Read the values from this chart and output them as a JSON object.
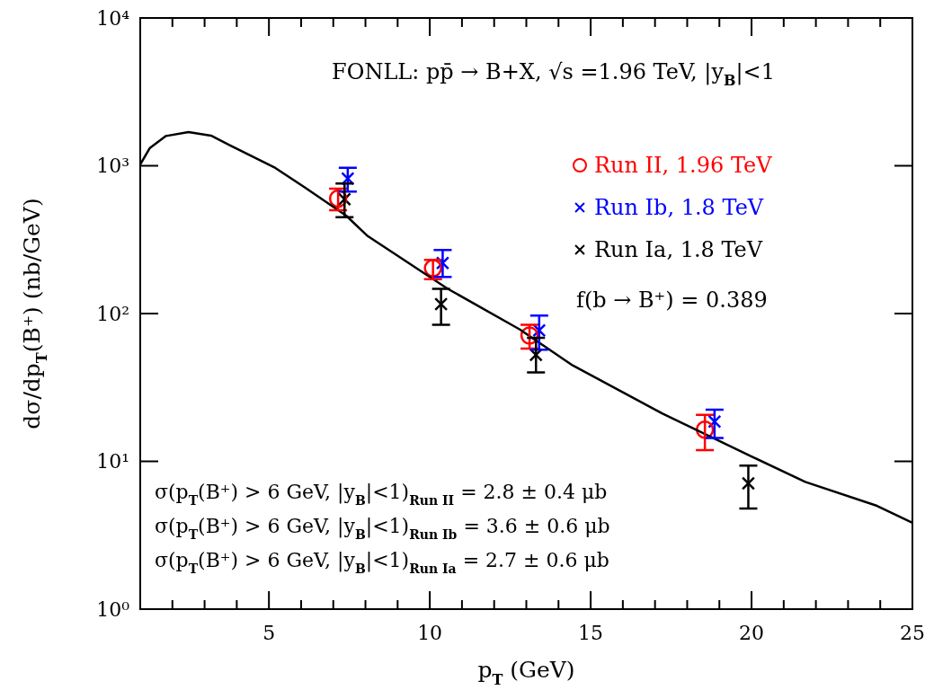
{
  "chart_data": {
    "type": "scatter",
    "xlabel": "p$_{T}$ (GeV)",
    "ylabel": "dσ/dp$_{T}$(B⁺) (nb/GeV)",
    "xlim": [
      1,
      25
    ],
    "xticks": [
      {
        "value": 2,
        "label": null
      },
      {
        "value": 3,
        "label": null
      },
      {
        "value": 4,
        "label": null
      },
      5,
      {
        "value": 6,
        "label": null
      },
      {
        "value": 7,
        "label": null
      },
      {
        "value": 8,
        "label": null
      },
      {
        "value": 9,
        "label": null
      },
      10,
      {
        "value": 11,
        "label": null
      },
      {
        "value": 12,
        "label": null
      },
      {
        "value": 13,
        "label": null
      },
      {
        "value": 14,
        "label": null
      },
      15,
      {
        "value": 16,
        "label": null
      },
      {
        "value": 17,
        "label": null
      },
      {
        "value": 18,
        "label": null
      },
      {
        "value": 19,
        "label": null
      },
      20,
      {
        "value": 21,
        "label": null
      },
      {
        "value": 22,
        "label": null
      },
      {
        "value": 23,
        "label": null
      },
      {
        "value": 24,
        "label": null
      },
      25
    ],
    "ylim": [
      1,
      10000
    ],
    "yticks": [
      {
        "value": 1,
        "label": "10⁰"
      },
      {
        "value": 10,
        "label": "10¹"
      },
      {
        "value": 100,
        "label": "10²"
      },
      {
        "value": 1000,
        "label": "10³"
      },
      {
        "value": 10000,
        "label": "10⁴"
      }
    ],
    "log": "y",
    "grid": false,
    "legend": "top right",
    "series": [
      {
        "type": "line",
        "color": "#000000",
        "marker": "none",
        "x": [
          1,
          1.3,
          1.8,
          2.5,
          3.2,
          3.95,
          5.2,
          6.1,
          7.4,
          8.05,
          10.56,
          12.8,
          14.44,
          17.22,
          20,
          21.67,
          23.9,
          25
        ],
        "values": [
          1020,
          1320,
          1590,
          1690,
          1600,
          1320,
          966,
          717,
          460,
          337,
          147,
          78,
          44.6,
          21.1,
          10.8,
          7.26,
          5.0,
          3.84
        ]
      },
      {
        "name": "Run II, 1.96 TeV",
        "color": "#ff0000",
        "marker": "circle",
        "x": [
          7.15,
          10.1,
          13.1,
          18.55
        ],
        "values": [
          600,
          203,
          71,
          16.4
        ],
        "errors": [
          [
            500,
            700
          ],
          [
            171,
            231
          ],
          [
            58,
            84
          ],
          [
            11.9,
            20.6
          ]
        ]
      },
      {
        "name": "Run Ib, 1.8 TeV",
        "color": "#0000ff",
        "marker": "cross",
        "x": [
          7.45,
          10.4,
          13.4,
          18.85
        ],
        "values": [
          820,
          220,
          77,
          18.6
        ],
        "errors": [
          [
            668,
            970
          ],
          [
            177,
            269
          ],
          [
            57,
            97
          ],
          [
            14.4,
            22.4
          ]
        ]
      },
      {
        "name": "Run Ia, 1.8 TeV",
        "color": "#000000",
        "marker": "cross",
        "x": [
          7.35,
          10.35,
          13.3,
          19.9
        ],
        "values": [
          594,
          116,
          52.5,
          7.1
        ],
        "errors": [
          [
            449,
            759
          ],
          [
            84,
            147
          ],
          [
            40,
            68.5
          ],
          [
            4.8,
            9.35
          ]
        ]
      }
    ],
    "annotations": [
      "FONLL: pp̄ → B+X, √s =1.96 TeV, |y$_{B}$|<1",
      "f(b → B⁺) = 0.389",
      "σ(p$_{T}$(B⁺) > 6 GeV, |y$_{B}$|<1)$_{Run II}$ = 2.8 ± 0.4 μb",
      "σ(p$_{T}$(B⁺) > 6 GeV, |y$_{B}$|<1)$_{Run Ib}$ = 3.6 ± 0.6 μb",
      "σ(p$_{T}$(B⁺) > 6 GeV, |y$_{B}$|<1)$_{Run Ia}$ = 2.7 ± 0.6 μb"
    ]
  }
}
